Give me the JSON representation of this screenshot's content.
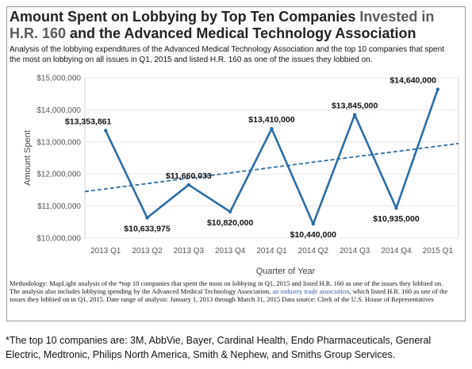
{
  "title_part1": "Amount Spent on Lobbying by Top Ten Companies ",
  "title_part2": "Invested in H.R. 160",
  "title_part3": " and the Advanced Medical Technology Association",
  "subtitle": "Analysis of the lobbying expenditures of the Advanced Medical Technology Association and the top 10 companies that spent the most on lobbying on all issues in Q1, 2015 and listed H.R. 160 as one of the issues they lobbied on.",
  "methodology_part1": "Methodology: MapLight analysis of the *top 10 companies that spent the most on lobbying in Q1, 2015 and listed H.R. 160 as one of the issues they lobbied on. The analysis also includes lobbying spending by the Advanced Medical Technology Association, ",
  "methodology_link": "an industry trade association",
  "methodology_part2": ", which listed H.R. 160 as one of the issues they lobbied on in Q1, 2015. Date range of analysis: January 1, 2013 through March 31, 2015 Data source:  Clerk of the U.S. House of Representatives",
  "footnote": "*The top 10 companies are: 3M, AbbVie, Bayer, Cardinal Health, Endo Pharmaceuticals, General Electric, Medtronic, Philips North America, Smith & Nephew, and Smiths Group Services.",
  "colors": {
    "line": "#2b6ea6",
    "trend": "#2b6ea6",
    "grid": "#e6e6e6",
    "title_accent": "#5b5b5b"
  },
  "chart_data": {
    "type": "line",
    "xlabel": "Quarter of Year",
    "ylabel": "Amount Spent",
    "categories": [
      "2013 Q1",
      "2013 Q2",
      "2013 Q3",
      "2013 Q4",
      "2014 Q1",
      "2014 Q2",
      "2014 Q3",
      "2014 Q4",
      "2015 Q1"
    ],
    "values": [
      13353861,
      10633975,
      11660033,
      10820000,
      13410000,
      10440000,
      13845000,
      10935000,
      14640000
    ],
    "value_labels": [
      "$13,353,861",
      "$10,633,975",
      "$11,660,033",
      "$10,820,000",
      "$13,410,000",
      "$10,440,000",
      "$13,845,000",
      "$10,935,000",
      "$14,640,000"
    ],
    "ylim": [
      10000000,
      15000000
    ],
    "yticks": [
      10000000,
      11000000,
      12000000,
      13000000,
      14000000,
      15000000
    ],
    "ytick_labels": [
      "$10,000,000",
      "$11,000,000",
      "$12,000,000",
      "$13,000,000",
      "$14,000,000",
      "$15,000,000"
    ],
    "trendline": {
      "style": "dashed",
      "start": 11450000,
      "end": 12950000
    },
    "grid": true,
    "legend": "none"
  }
}
